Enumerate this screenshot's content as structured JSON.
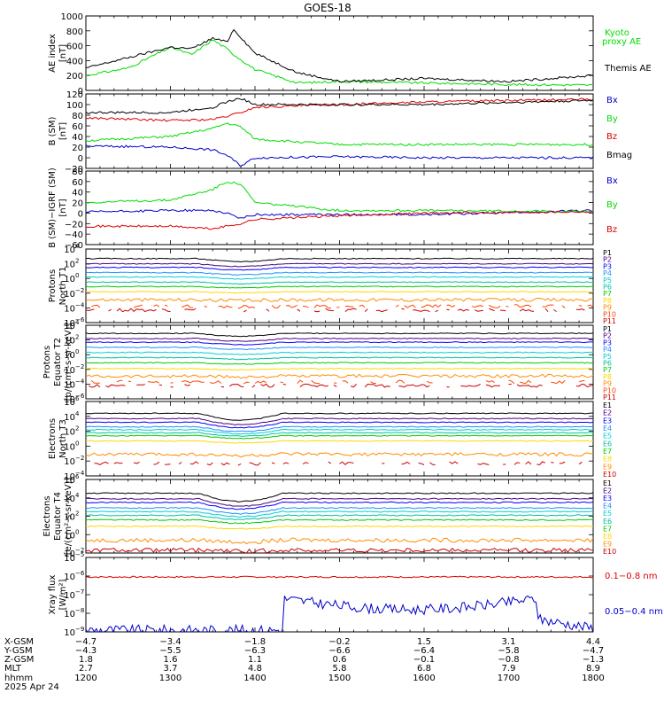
{
  "title": "GOES-18",
  "colors": {
    "black": "#000000",
    "blue": "#0000cc",
    "green": "#00dd00",
    "red": "#dd0000",
    "p_lines": [
      "#000000",
      "#4b0082",
      "#0000ff",
      "#1e90ff",
      "#00ced1",
      "#00c0a0",
      "#00cc00",
      "#ffd700",
      "#ff8c00",
      "#ff4500",
      "#cc0000"
    ],
    "e_lines": [
      "#000000",
      "#4b0082",
      "#0000ff",
      "#1e90ff",
      "#00ced1",
      "#00c0a0",
      "#00cc00",
      "#ffd700",
      "#ff8c00",
      "#cc0000"
    ]
  },
  "chart_data": [
    {
      "type": "line",
      "ylabel": [
        "AE index",
        "[nT]"
      ],
      "ylim": [
        0,
        1000
      ],
      "ticks": [
        "0",
        "200",
        "400",
        "600",
        "800",
        "1000"
      ],
      "x": [
        "1200",
        "1230",
        "1300",
        "1315",
        "1330",
        "1340",
        "1345",
        "1400",
        "1430",
        "1500",
        "1600",
        "1700",
        "1800"
      ],
      "series": [
        {
          "name": "Kyoto proxy AE",
          "color": "green",
          "values": [
            200,
            300,
            580,
            480,
            680,
            560,
            480,
            280,
            100,
            120,
            100,
            80,
            70
          ]
        },
        {
          "name": "Themis AE",
          "color": "black",
          "values": [
            300,
            440,
            580,
            560,
            700,
            650,
            820,
            500,
            240,
            120,
            160,
            120,
            200
          ]
        }
      ],
      "legend": [
        {
          "text": "Kyoto",
          "color": "green"
        },
        {
          "text": "proxy AE",
          "color": "green"
        },
        {
          "text": "Themis AE",
          "color": "black"
        }
      ]
    },
    {
      "type": "line",
      "ylabel": [
        "B (SM)",
        "[nT]"
      ],
      "ylim": [
        -20,
        120
      ],
      "ticks": [
        "−20",
        "0",
        "20",
        "40",
        "60",
        "80",
        "100",
        "120"
      ],
      "x": [
        "1200",
        "1300",
        "1330",
        "1340",
        "1350",
        "1400",
        "1500",
        "1600",
        "1800"
      ],
      "series": [
        {
          "name": "Bx",
          "color": "blue",
          "values": [
            22,
            20,
            15,
            5,
            -15,
            0,
            2,
            0,
            0
          ]
        },
        {
          "name": "By",
          "color": "green",
          "values": [
            32,
            40,
            55,
            65,
            58,
            35,
            25,
            25,
            25
          ]
        },
        {
          "name": "Bz",
          "color": "red",
          "values": [
            75,
            70,
            72,
            78,
            85,
            95,
            100,
            105,
            110
          ]
        },
        {
          "name": "Bmag",
          "color": "black",
          "values": [
            85,
            85,
            95,
            105,
            112,
            100,
            100,
            100,
            108
          ]
        }
      ],
      "legend": [
        {
          "text": "Bx",
          "color": "blue"
        },
        {
          "text": "By",
          "color": "green"
        },
        {
          "text": "Bz",
          "color": "red"
        },
        {
          "text": "Bmag",
          "color": "black"
        }
      ]
    },
    {
      "type": "line",
      "ylabel": [
        "B (SM)−IGRF (SM)",
        "[nT]"
      ],
      "ylim": [
        -60,
        80
      ],
      "ticks": [
        "−60",
        "−40",
        "−20",
        "0",
        "20",
        "40",
        "60",
        "80"
      ],
      "x": [
        "1200",
        "1300",
        "1330",
        "1340",
        "1350",
        "1400",
        "1500",
        "1600",
        "1800"
      ],
      "series": [
        {
          "name": "Bx",
          "color": "blue",
          "values": [
            2,
            5,
            5,
            0,
            -10,
            -3,
            -3,
            -3,
            5
          ]
        },
        {
          "name": "By",
          "color": "green",
          "values": [
            20,
            25,
            45,
            60,
            55,
            20,
            5,
            5,
            3
          ]
        },
        {
          "name": "Bz",
          "color": "red",
          "values": [
            -25,
            -25,
            -30,
            -25,
            -20,
            -12,
            -5,
            0,
            3
          ]
        }
      ],
      "legend": [
        {
          "text": "Bx",
          "color": "blue"
        },
        {
          "text": "By",
          "color": "green"
        },
        {
          "text": "Bz",
          "color": "red"
        }
      ]
    },
    {
      "type": "line",
      "scale": "log",
      "ylabel": [
        "Protons",
        "North T1"
      ],
      "ylim_exp": [
        -6,
        4
      ],
      "ticks": [
        {
          "b": "10",
          "e": "4"
        },
        {
          "b": "10",
          "e": "2"
        },
        {
          "b": "10",
          "e": "0"
        },
        {
          "b": "10",
          "e": "−2"
        },
        {
          "b": "10",
          "e": "−4"
        },
        {
          "b": "10",
          "e": "−6"
        }
      ],
      "channels": [
        "P1",
        "P2",
        "P3",
        "P4",
        "P5",
        "P6",
        "P7",
        "P8",
        "P9",
        "P10",
        "P11"
      ],
      "levels": [
        2.7,
        2.0,
        1.5,
        0.8,
        0.2,
        -0.5,
        -1.1,
        -1.8,
        -2.9,
        -3.8,
        -4.3
      ],
      "gaps_from": 9
    },
    {
      "type": "line",
      "scale": "log",
      "ylabel": [
        "Protons",
        "Equator T2",
        "[p/(cm²-s-sr-keV)]"
      ],
      "ylim_exp": [
        -6,
        4
      ],
      "ticks": [
        {
          "b": "10",
          "e": "4"
        },
        {
          "b": "10",
          "e": "2"
        },
        {
          "b": "10",
          "e": "0"
        },
        {
          "b": "10",
          "e": "−2"
        },
        {
          "b": "10",
          "e": "−4"
        },
        {
          "b": "10",
          "e": "−6"
        }
      ],
      "channels": [
        "P1",
        "P2",
        "P3",
        "P4",
        "P5",
        "P6",
        "P7",
        "P8",
        "P9",
        "P10",
        "P11"
      ],
      "levels": [
        2.9,
        2.2,
        1.7,
        1.0,
        0.3,
        -0.4,
        -1.1,
        -1.9,
        -2.9,
        -3.7,
        -4.2
      ],
      "gaps_from": 9
    },
    {
      "type": "line",
      "scale": "log",
      "ylabel": [
        "Electrons",
        "North T3"
      ],
      "ylim_exp": [
        -4,
        6
      ],
      "ticks": [
        {
          "b": "10",
          "e": "6"
        },
        {
          "b": "10",
          "e": "4"
        },
        {
          "b": "10",
          "e": "2"
        },
        {
          "b": "10",
          "e": "0"
        },
        {
          "b": "10",
          "e": "−2"
        },
        {
          "b": "10",
          "e": "−4"
        }
      ],
      "channels": [
        "E1",
        "E2",
        "E3",
        "E4",
        "E5",
        "E6",
        "E7",
        "E8",
        "E9",
        "E10"
      ],
      "levels": [
        4.4,
        3.7,
        3.2,
        2.6,
        2.2,
        1.8,
        1.4,
        0.7,
        -1.1,
        -2.3
      ],
      "gaps_from": 9
    },
    {
      "type": "line",
      "scale": "log",
      "ylabel": [
        "Electrons",
        "Equator T4",
        "[e/(cm²-s-sr-keV)]"
      ],
      "ylim_exp": [
        -2,
        6
      ],
      "ticks": [
        {
          "b": "10",
          "e": "6"
        },
        {
          "b": "10",
          "e": "4"
        },
        {
          "b": "10",
          "e": "2"
        },
        {
          "b": "10",
          "e": "0"
        },
        {
          "b": "10",
          "e": "−2"
        }
      ],
      "channels": [
        "E1",
        "E2",
        "E3",
        "E4",
        "E5",
        "E6",
        "E7",
        "E8",
        "E9",
        "E10"
      ],
      "levels": [
        4.5,
        3.9,
        3.5,
        2.9,
        2.5,
        2.1,
        1.6,
        0.9,
        -0.6,
        -1.7
      ],
      "gaps_from": 10
    },
    {
      "type": "line",
      "scale": "log",
      "ylabel": [
        "Xray flux",
        "[W/m²]"
      ],
      "ylim_exp": [
        -9,
        -5
      ],
      "ticks": [
        {
          "b": "10",
          "e": "−5"
        },
        {
          "b": "10",
          "e": "−6"
        },
        {
          "b": "10",
          "e": "−7"
        },
        {
          "b": "10",
          "e": "−8"
        },
        {
          "b": "10",
          "e": "−9"
        }
      ],
      "series": [
        {
          "name": "0.1−0.8 nm",
          "color": "red"
        },
        {
          "name": "0.05−0.4 nm",
          "color": "blue"
        }
      ],
      "legend": [
        {
          "text": "0.1−0.8 nm",
          "color": "red"
        },
        {
          "text": "0.05−0.4 nm",
          "color": "blue"
        }
      ]
    }
  ],
  "x_axis": {
    "rows": [
      {
        "label": "X-GSM",
        "values": [
          "−4.7",
          "−3.4",
          "−1.8",
          "−0.2",
          "1.5",
          "3.1",
          "4.4"
        ]
      },
      {
        "label": "Y-GSM",
        "values": [
          "−4.3",
          "−5.5",
          "−6.3",
          "−6.6",
          "−6.4",
          "−5.8",
          "−4.7"
        ]
      },
      {
        "label": "Z-GSM",
        "values": [
          "1.8",
          "1.6",
          "1.1",
          "0.6",
          "−0.1",
          "−0.8",
          "−1.3"
        ]
      },
      {
        "label": "MLT",
        "values": [
          "2.7",
          "3.7",
          "4.8",
          "5.8",
          "6.8",
          "7.9",
          "8.9"
        ]
      },
      {
        "label": "hhmm",
        "values": [
          "1200",
          "1300",
          "1400",
          "1500",
          "1600",
          "1700",
          "1800"
        ]
      }
    ],
    "date": "2025 Apr 24"
  }
}
